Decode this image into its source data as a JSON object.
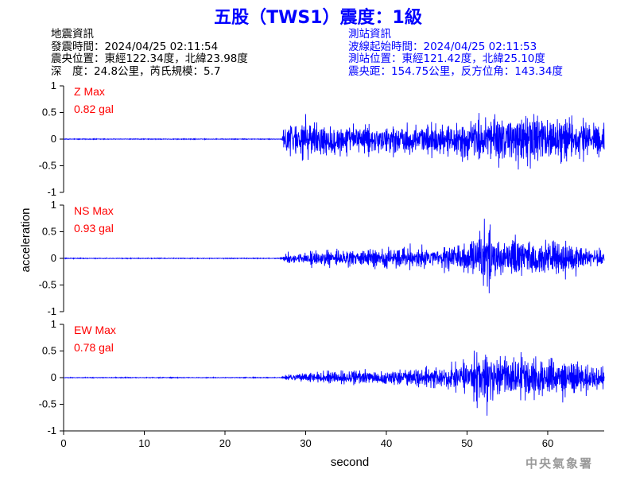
{
  "title": "五股（TWS1）震度：1級",
  "earthquake_info": {
    "heading": "地震資訊",
    "origin_time": "發震時間：2024/04/25 02:11:54",
    "epicenter": "震央位置：東經122.34度，北緯23.98度",
    "depth_magnitude": "深　度：24.8公里，芮氏規模：5.7"
  },
  "station_info": {
    "heading": "測站資訊",
    "arrival_time": "波線起始時間：2024/04/25 02:11:53",
    "location": "測站位置：東經121.42度，北緯25.10度",
    "distance_azimuth": "震央距：154.75公里，反方位角：143.34度"
  },
  "credit": "中央氣象署",
  "colors": {
    "title": "#0000ff",
    "trace": "#0000ff",
    "max_label": "#ff0000",
    "station_text": "#0000ff"
  },
  "chart_data": {
    "type": "line",
    "xlabel": "second",
    "ylabel": "acceleration",
    "xlim": [
      0,
      67
    ],
    "ylim": [
      -1,
      1
    ],
    "x_ticks": [
      "0",
      "10",
      "20",
      "30",
      "40",
      "50",
      "60"
    ],
    "y_ticks": [
      "1",
      "0.5",
      "0",
      "-0.5",
      "-1"
    ],
    "p_arrival_s": 27.3,
    "grid": false,
    "series": [
      {
        "name": "Z Max",
        "max_value": "0.82 gal",
        "envelope": [
          [
            0,
            0.01
          ],
          [
            27,
            0.01
          ],
          [
            27.5,
            0.5
          ],
          [
            29,
            0.6
          ],
          [
            31,
            0.55
          ],
          [
            33,
            0.45
          ],
          [
            36,
            0.38
          ],
          [
            40,
            0.38
          ],
          [
            44,
            0.4
          ],
          [
            47,
            0.42
          ],
          [
            49,
            0.5
          ],
          [
            52,
            0.62
          ],
          [
            55,
            0.66
          ],
          [
            57,
            0.68
          ],
          [
            58,
            0.75
          ],
          [
            60,
            0.62
          ],
          [
            63,
            0.55
          ],
          [
            66,
            0.5
          ],
          [
            67,
            0.45
          ]
        ]
      },
      {
        "name": "NS Max",
        "max_value": "0.93 gal",
        "envelope": [
          [
            0,
            0.01
          ],
          [
            27,
            0.01
          ],
          [
            27.5,
            0.12
          ],
          [
            30,
            0.18
          ],
          [
            33,
            0.22
          ],
          [
            37,
            0.25
          ],
          [
            41,
            0.28
          ],
          [
            45,
            0.3
          ],
          [
            48,
            0.35
          ],
          [
            51,
            0.55
          ],
          [
            52,
            0.68
          ],
          [
            52.5,
            0.9
          ],
          [
            54,
            0.6
          ],
          [
            57,
            0.55
          ],
          [
            59,
            0.42
          ],
          [
            60,
            0.5
          ],
          [
            62,
            0.4
          ],
          [
            65,
            0.3
          ],
          [
            67,
            0.25
          ]
        ]
      },
      {
        "name": "EW Max",
        "max_value": "0.78 gal",
        "envelope": [
          [
            0,
            0.01
          ],
          [
            27,
            0.01
          ],
          [
            28,
            0.1
          ],
          [
            30,
            0.15
          ],
          [
            34,
            0.18
          ],
          [
            38,
            0.2
          ],
          [
            42,
            0.22
          ],
          [
            46,
            0.28
          ],
          [
            48,
            0.35
          ],
          [
            50,
            0.45
          ],
          [
            52,
            0.75
          ],
          [
            53,
            0.7
          ],
          [
            55,
            0.55
          ],
          [
            57,
            0.5
          ],
          [
            59,
            0.5
          ],
          [
            61,
            0.5
          ],
          [
            63,
            0.4
          ],
          [
            65,
            0.35
          ],
          [
            67,
            0.3
          ]
        ]
      }
    ]
  }
}
